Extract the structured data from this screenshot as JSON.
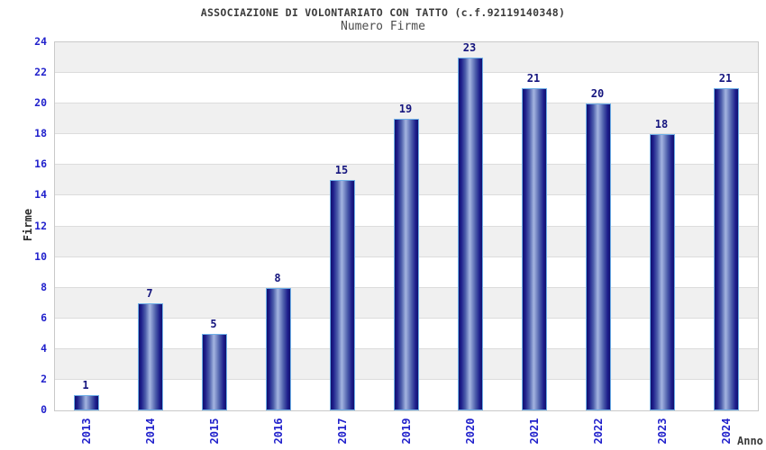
{
  "chart_data": {
    "type": "bar",
    "title": "ASSOCIAZIONE DI VOLONTARIATO CON TATTO (c.f.92119140348)",
    "subtitle": "Numero Firme",
    "xlabel": "Anno",
    "ylabel": "Firme",
    "categories": [
      "2013",
      "2014",
      "2015",
      "2016",
      "2017",
      "2019",
      "2020",
      "2021",
      "2022",
      "2023",
      "2024"
    ],
    "values": [
      1,
      7,
      5,
      8,
      15,
      19,
      23,
      21,
      20,
      18,
      21
    ],
    "ylim": [
      0,
      24
    ],
    "ytick_step": 2,
    "yticks": [
      0,
      2,
      4,
      6,
      8,
      10,
      12,
      14,
      16,
      18,
      20,
      22,
      24
    ],
    "grid": "horizontal-on",
    "legend_position": "none",
    "colors": {
      "bar_dark": "#12126e",
      "bar_highlight": "#a4b4e0",
      "bar_border": "#6fb0e8",
      "tick_label": "#2222cc",
      "value_label": "#15157e",
      "band_fill": "#f0f0f0",
      "grid_line": "#dcdcdc",
      "plot_border": "#c9c9c9",
      "title_color": "#3b3b3b",
      "subtitle_color": "#4d4d4d",
      "axis_title_color": "#333333"
    }
  }
}
